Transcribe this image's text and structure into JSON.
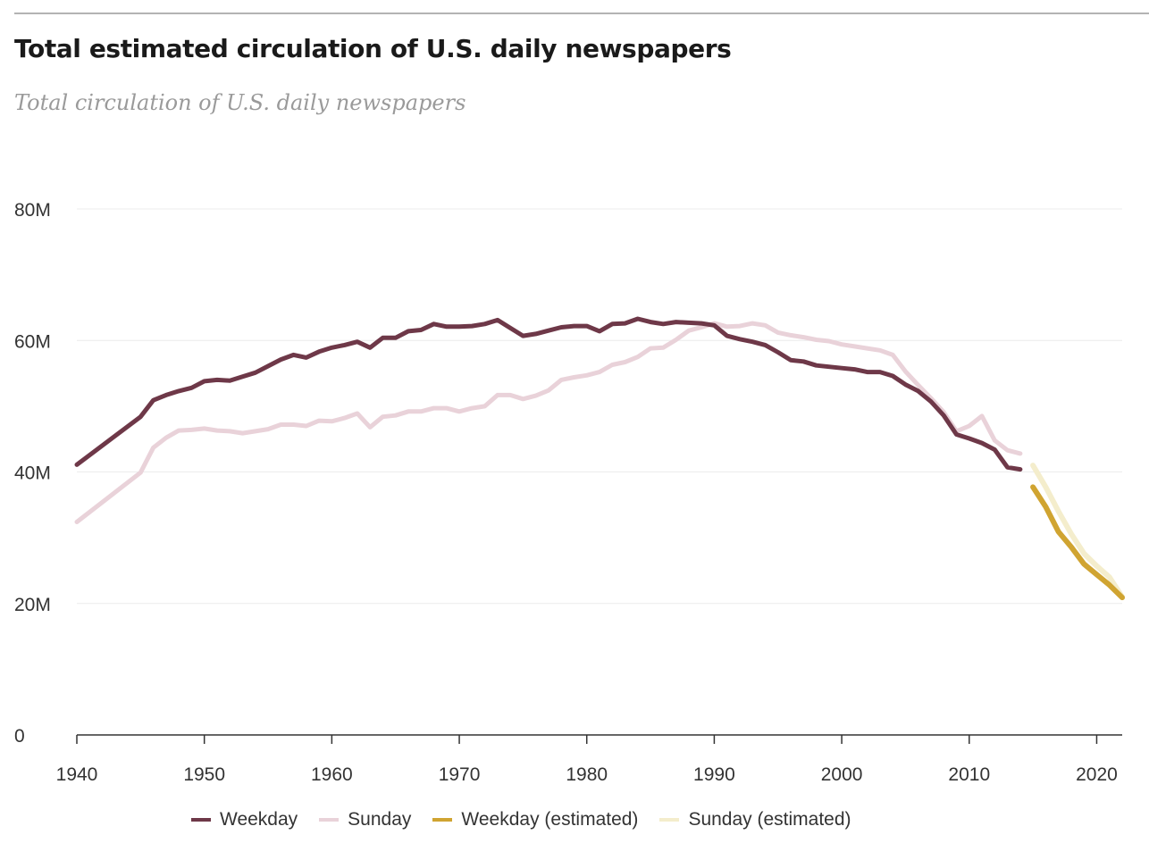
{
  "header": {
    "title": "Total estimated circulation of U.S. daily newspapers",
    "subtitle": "Total circulation of U.S. daily newspapers"
  },
  "colors": {
    "weekday": "#6e3848",
    "sunday": "#e9d2d9",
    "weekday_estimated": "#d0a431",
    "sunday_estimated": "#f4edcc",
    "gridline": "#ececec",
    "axis": "#333333"
  },
  "chart_data": {
    "type": "line",
    "title": "Total estimated circulation of U.S. daily newspapers",
    "subtitle": "Total circulation of U.S. daily newspapers",
    "xlabel": "",
    "ylabel": "",
    "xlim": [
      1940,
      2022
    ],
    "ylim": [
      0,
      80000000
    ],
    "x_ticks": [
      1940,
      1950,
      1960,
      1970,
      1980,
      1990,
      2000,
      2010,
      2020
    ],
    "x_tick_labels": [
      "1940",
      "1950",
      "1960",
      "1970",
      "1980",
      "1990",
      "2000",
      "2010",
      "2020"
    ],
    "y_ticks": [
      0,
      20000000,
      40000000,
      60000000,
      80000000
    ],
    "y_tick_labels": [
      "0",
      "20M",
      "40M",
      "60M",
      "80M"
    ],
    "grid": true,
    "legend_position": "bottom",
    "series": [
      {
        "name": "Weekday",
        "key": "weekday",
        "x": [
          1940,
          1945,
          1946,
          1947,
          1948,
          1949,
          1950,
          1951,
          1952,
          1953,
          1954,
          1955,
          1956,
          1957,
          1958,
          1959,
          1960,
          1961,
          1962,
          1963,
          1964,
          1965,
          1966,
          1967,
          1968,
          1969,
          1970,
          1971,
          1972,
          1973,
          1974,
          1975,
          1976,
          1977,
          1978,
          1979,
          1980,
          1981,
          1982,
          1983,
          1984,
          1985,
          1986,
          1987,
          1988,
          1989,
          1990,
          1991,
          1992,
          1993,
          1994,
          1995,
          1996,
          1997,
          1998,
          1999,
          2000,
          2001,
          2002,
          2003,
          2004,
          2005,
          2006,
          2007,
          2008,
          2009,
          2010,
          2011,
          2012,
          2013,
          2014
        ],
        "y": [
          41100000,
          48400000,
          50900000,
          51700000,
          52300000,
          52800000,
          53800000,
          54000000,
          53900000,
          54500000,
          55100000,
          56100000,
          57100000,
          57800000,
          57400000,
          58300000,
          58900000,
          59300000,
          59800000,
          58900000,
          60400000,
          60400000,
          61400000,
          61600000,
          62500000,
          62100000,
          62100000,
          62200000,
          62500000,
          63100000,
          61900000,
          60700000,
          61000000,
          61500000,
          62000000,
          62200000,
          62200000,
          61400000,
          62500000,
          62600000,
          63300000,
          62800000,
          62500000,
          62800000,
          62700000,
          62600000,
          62300000,
          60700000,
          60200000,
          59800000,
          59300000,
          58200000,
          57000000,
          56800000,
          56200000,
          56000000,
          55800000,
          55600000,
          55200000,
          55200000,
          54600000,
          53300000,
          52300000,
          50700000,
          48600000,
          45700000,
          45100000,
          44400000,
          43400000,
          40700000,
          40400000
        ]
      },
      {
        "name": "Sunday",
        "key": "sunday",
        "x": [
          1940,
          1945,
          1946,
          1947,
          1948,
          1949,
          1950,
          1951,
          1952,
          1953,
          1954,
          1955,
          1956,
          1957,
          1958,
          1959,
          1960,
          1961,
          1962,
          1963,
          1964,
          1965,
          1966,
          1967,
          1968,
          1969,
          1970,
          1971,
          1972,
          1973,
          1974,
          1975,
          1976,
          1977,
          1978,
          1979,
          1980,
          1981,
          1982,
          1983,
          1984,
          1985,
          1986,
          1987,
          1988,
          1989,
          1990,
          1991,
          1992,
          1993,
          1994,
          1995,
          1996,
          1997,
          1998,
          1999,
          2000,
          2001,
          2002,
          2003,
          2004,
          2005,
          2006,
          2007,
          2008,
          2009,
          2010,
          2011,
          2012,
          2013,
          2014
        ],
        "y": [
          32400000,
          39900000,
          43700000,
          45200000,
          46300000,
          46400000,
          46600000,
          46300000,
          46200000,
          45900000,
          46200000,
          46500000,
          47200000,
          47200000,
          47000000,
          47800000,
          47700000,
          48200000,
          48900000,
          46800000,
          48400000,
          48600000,
          49200000,
          49200000,
          49700000,
          49700000,
          49200000,
          49700000,
          50000000,
          51700000,
          51700000,
          51100000,
          51600000,
          52400000,
          54000000,
          54400000,
          54700000,
          55200000,
          56300000,
          56700000,
          57500000,
          58800000,
          58900000,
          60100000,
          61500000,
          62000000,
          62600000,
          62100000,
          62200000,
          62600000,
          62300000,
          61200000,
          60800000,
          60500000,
          60100000,
          59900000,
          59400000,
          59100000,
          58800000,
          58500000,
          57800000,
          55300000,
          53200000,
          51200000,
          49100000,
          46200000,
          47000000,
          48500000,
          44800000,
          43300000,
          42800000
        ]
      },
      {
        "name": "Weekday (estimated)",
        "key": "weekday_estimated",
        "x": [
          2015,
          2016,
          2017,
          2018,
          2019,
          2020,
          2021,
          2022
        ],
        "y": [
          37700000,
          34700000,
          30900000,
          28600000,
          26000000,
          24400000,
          22800000,
          20900000
        ]
      },
      {
        "name": "Sunday (estimated)",
        "key": "sunday_estimated",
        "x": [
          2015,
          2016,
          2017,
          2018,
          2019,
          2020,
          2021,
          2022
        ],
        "y": [
          41000000,
          37700000,
          34000000,
          30600000,
          27600000,
          25700000,
          24000000,
          21000000
        ]
      }
    ]
  }
}
